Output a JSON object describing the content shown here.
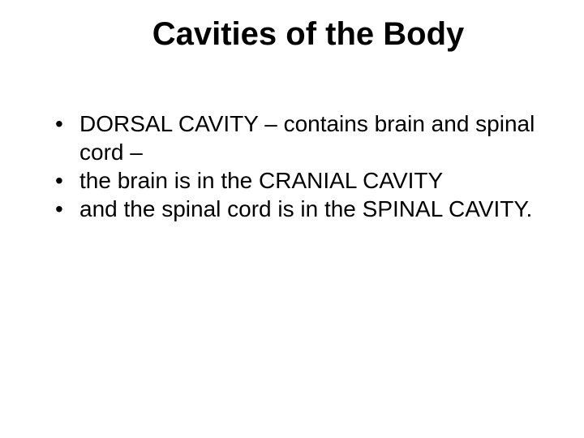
{
  "slide": {
    "title": "Cavities of the Body",
    "title_fontsize": 40,
    "title_weight": "bold",
    "body_fontsize": 28,
    "background_color": "#ffffff",
    "text_color": "#000000",
    "bullets": [
      "DORSAL CAVITY – contains brain and spinal cord –",
      " the brain is in the CRANIAL CAVITY",
      " and the spinal cord is in the SPINAL CAVITY."
    ]
  }
}
